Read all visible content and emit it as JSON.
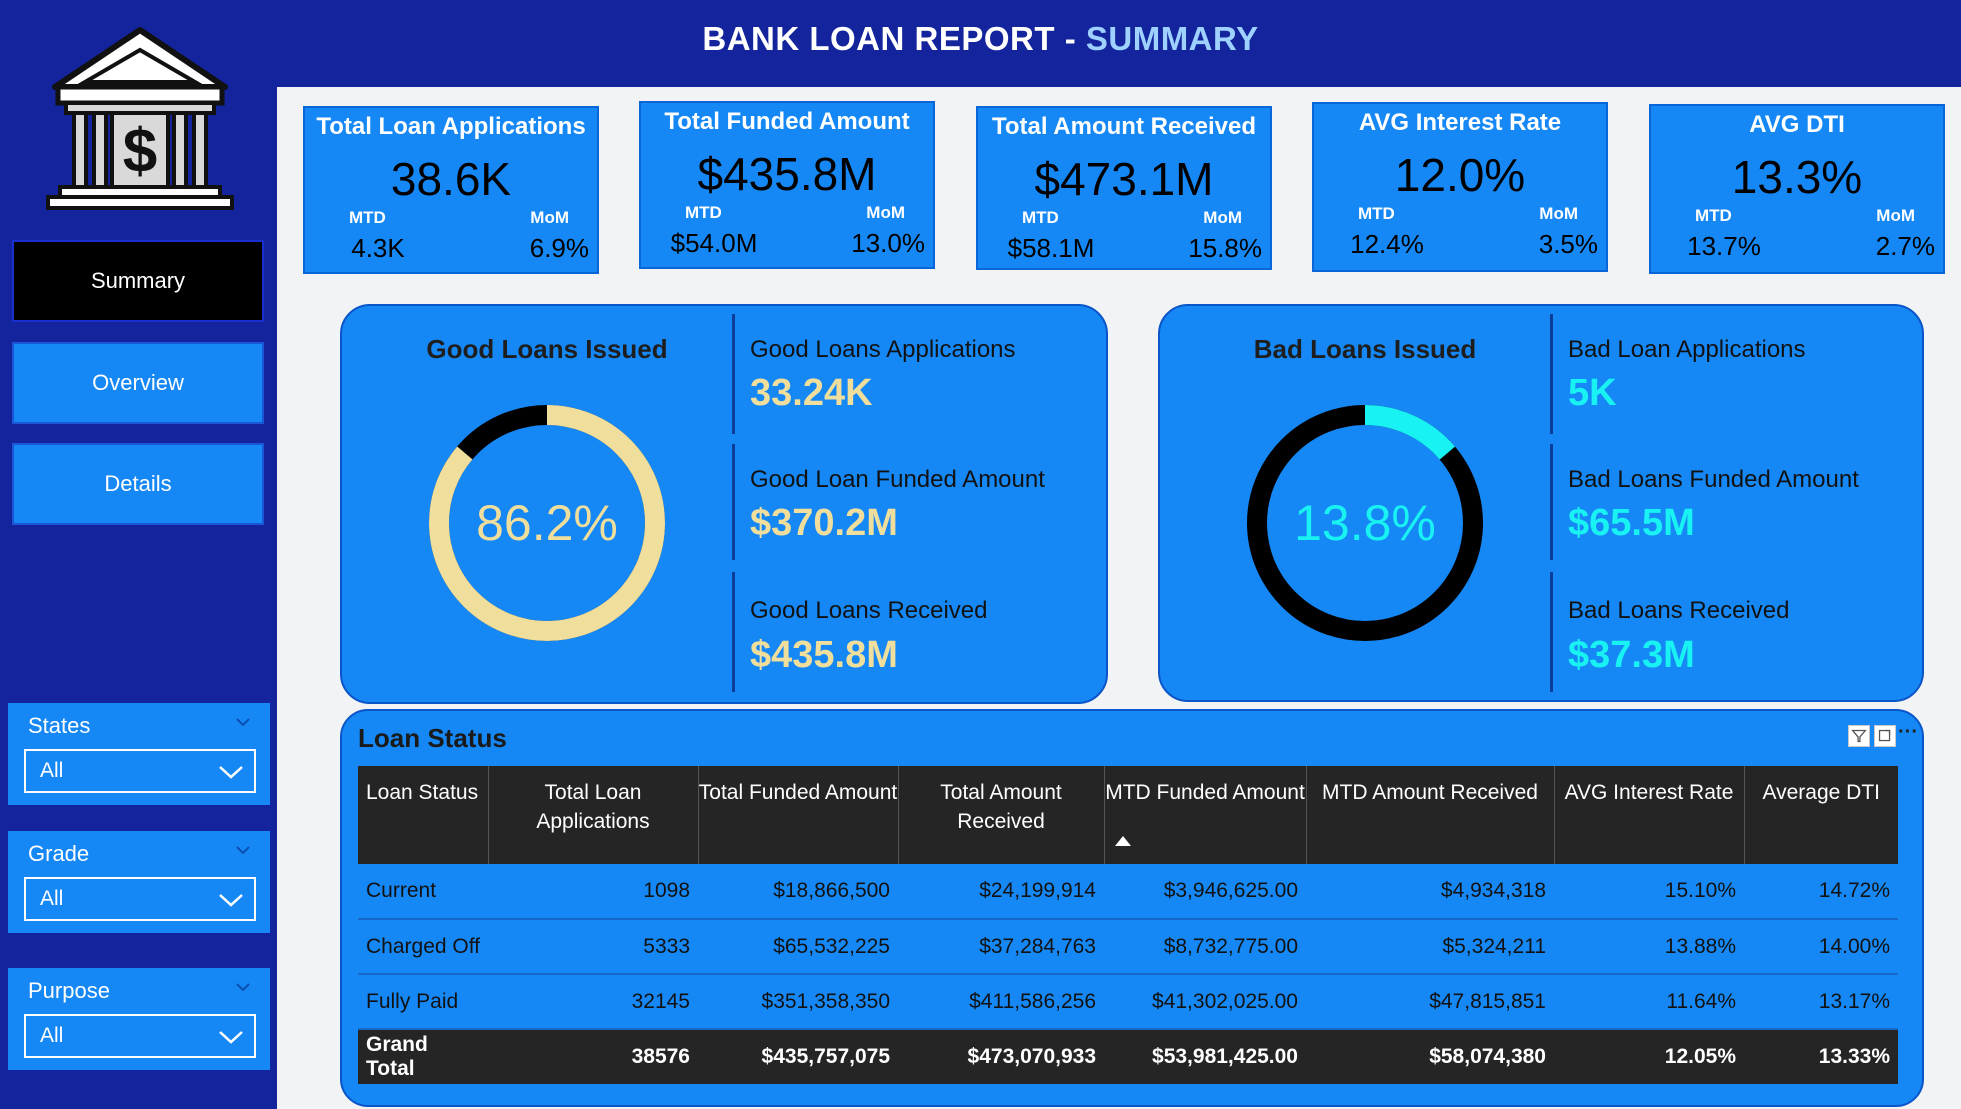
{
  "header": {
    "title_main": "BANK LOAN REPORT - ",
    "title_accent": "SUMMARY"
  },
  "sidebar": {
    "logo_icon": "bank-dollar-icon",
    "nav": [
      {
        "label": "Summary",
        "active": true
      },
      {
        "label": "Overview",
        "active": false
      },
      {
        "label": "Details",
        "active": false
      }
    ],
    "slicers": [
      {
        "label": "States",
        "value": "All"
      },
      {
        "label": "Grade",
        "value": "All"
      },
      {
        "label": "Purpose",
        "value": "All"
      }
    ]
  },
  "kpis": [
    {
      "title": "Total Loan Applications",
      "value": "38.6K",
      "mtd_label": "MTD",
      "mom_label": "MoM",
      "mtd": "4.3K",
      "mom": "6.9%"
    },
    {
      "title": "Total Funded Amount",
      "value": "$435.8M",
      "mtd_label": "MTD",
      "mom_label": "MoM",
      "mtd": "$54.0M",
      "mom": "13.0%"
    },
    {
      "title": "Total Amount Received",
      "value": "$473.1M",
      "mtd_label": "MTD",
      "mom_label": "MoM",
      "mtd": "$58.1M",
      "mom": "15.8%"
    },
    {
      "title": "AVG Interest Rate",
      "value": "12.0%",
      "mtd_label": "MTD",
      "mom_label": "MoM",
      "mtd": "12.4%",
      "mom": "3.5%"
    },
    {
      "title": "AVG DTI",
      "value": "13.3%",
      "mtd_label": "MTD",
      "mom_label": "MoM",
      "mtd": "13.7%",
      "mom": "2.7%"
    }
  ],
  "good_loans": {
    "title": "Good Loans Issued",
    "percent_label": "86.2%",
    "percent": 0.862,
    "ring_color": "#f0de9c",
    "rest_color": "#000000",
    "value_color": "#f0de9c",
    "metrics": [
      {
        "label": "Good Loans Applications",
        "value": "33.24K"
      },
      {
        "label": "Good Loan Funded Amount",
        "value": "$370.2M"
      },
      {
        "label": "Good Loans Received",
        "value": "$435.8M"
      }
    ]
  },
  "bad_loans": {
    "title": "Bad Loans Issued",
    "percent_label": "13.8%",
    "percent": 0.138,
    "ring_color": "#19f2f2",
    "rest_color": "#000000",
    "value_color": "#19f2f2",
    "metrics": [
      {
        "label": "Bad Loan Applications",
        "value": "5K"
      },
      {
        "label": "Bad Loans Funded Amount",
        "value": "$65.5M"
      },
      {
        "label": "Bad Loans Received",
        "value": "$37.3M"
      }
    ]
  },
  "loan_status_table": {
    "title": "Loan Status",
    "filter_icon": "filter-icon",
    "focus_icon": "focus-mode-icon",
    "more_icon": "more-options-icon",
    "sort_icon": "sort-ascending-icon",
    "columns": [
      "Loan Status",
      "Total Loan Applications",
      "Total Funded Amount",
      "Total Amount Received",
      "MTD Funded Amount",
      "MTD Amount Received",
      "AVG Interest Rate",
      "Average DTI"
    ],
    "rows": [
      [
        "Current",
        "1098",
        "$18,866,500",
        "$24,199,914",
        "$3,946,625.00",
        "$4,934,318",
        "15.10%",
        "14.72%"
      ],
      [
        "Charged Off",
        "5333",
        "$65,532,225",
        "$37,284,763",
        "$8,732,775.00",
        "$5,324,211",
        "13.88%",
        "14.00%"
      ],
      [
        "Fully Paid",
        "32145",
        "$351,358,350",
        "$411,586,256",
        "$41,302,025.00",
        "$47,815,851",
        "11.64%",
        "13.17%"
      ]
    ],
    "total": [
      "Grand Total",
      "38576",
      "$435,757,075",
      "$473,070,933",
      "$53,981,425.00",
      "$58,074,380",
      "12.05%",
      "13.33%"
    ]
  }
}
